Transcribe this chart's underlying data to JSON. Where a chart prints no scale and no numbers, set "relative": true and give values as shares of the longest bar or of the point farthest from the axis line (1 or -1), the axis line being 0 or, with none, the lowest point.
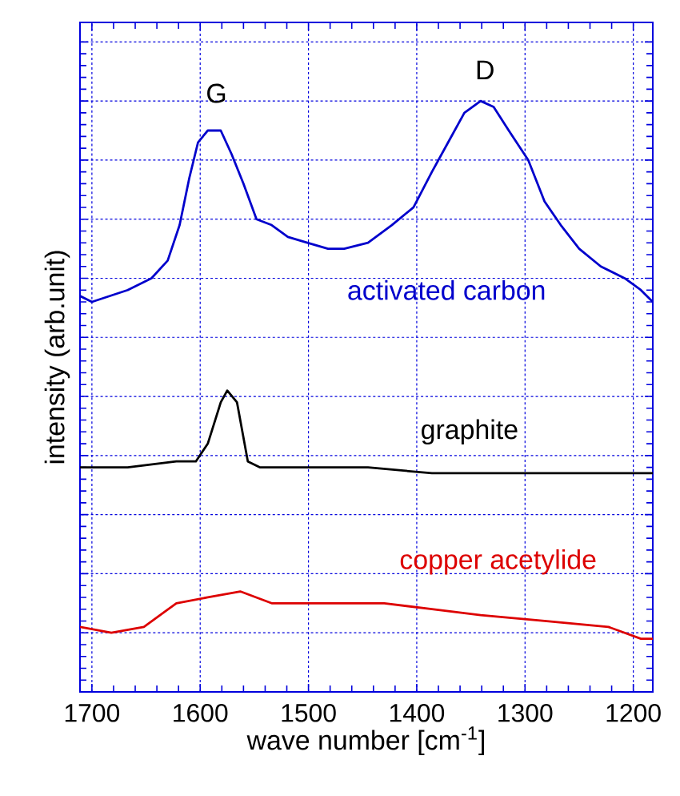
{
  "chart_data": {
    "type": "line",
    "xlabel": "wave number [cm$^{-1}$]",
    "ylabel": "intensity (arb.unit)",
    "relative": true,
    "grid": true,
    "tick_labels": "x",
    "xlim": [
      1711,
      1182
    ],
    "xticks": [
      1700,
      1600,
      1500,
      1400,
      1300,
      1200
    ],
    "annotations": [
      {
        "text": "G",
        "x": 1585,
        "y": 0.96
      },
      {
        "text": "D",
        "x": 1337,
        "y": 1.0
      }
    ],
    "series": [
      {
        "name": "activated carbon",
        "color": "#0000cc",
        "x": [
          1711,
          1700,
          1667,
          1645,
          1630,
          1619,
          1610,
          1602,
          1593,
          1581,
          1571,
          1560,
          1548,
          1534,
          1519,
          1501,
          1482,
          1467,
          1445,
          1423,
          1403,
          1386,
          1371,
          1356,
          1341,
          1329,
          1315,
          1297,
          1282,
          1267,
          1250,
          1230,
          1208,
          1193,
          1182
        ],
        "values": [
          0.67,
          0.66,
          0.68,
          0.7,
          0.73,
          0.79,
          0.87,
          0.93,
          0.95,
          0.95,
          0.91,
          0.86,
          0.8,
          0.79,
          0.77,
          0.76,
          0.75,
          0.75,
          0.76,
          0.79,
          0.82,
          0.88,
          0.93,
          0.98,
          1.0,
          0.99,
          0.95,
          0.9,
          0.83,
          0.79,
          0.75,
          0.72,
          0.7,
          0.68,
          0.66
        ]
      },
      {
        "name": "graphite",
        "color": "#000000",
        "x": [
          1711,
          1667,
          1622,
          1604,
          1593,
          1581,
          1575,
          1566,
          1556,
          1545,
          1501,
          1445,
          1386,
          1297,
          1182
        ],
        "values": [
          0.38,
          0.38,
          0.39,
          0.39,
          0.42,
          0.49,
          0.51,
          0.49,
          0.39,
          0.38,
          0.38,
          0.38,
          0.37,
          0.37,
          0.37
        ]
      },
      {
        "name": "copper acetylide",
        "color": "#dd0000",
        "x": [
          1711,
          1682,
          1652,
          1622,
          1593,
          1563,
          1534,
          1489,
          1430,
          1386,
          1341,
          1282,
          1223,
          1193,
          1182
        ],
        "values": [
          0.11,
          0.1,
          0.11,
          0.15,
          0.16,
          0.17,
          0.15,
          0.15,
          0.15,
          0.14,
          0.13,
          0.12,
          0.11,
          0.09,
          0.09
        ]
      }
    ]
  }
}
